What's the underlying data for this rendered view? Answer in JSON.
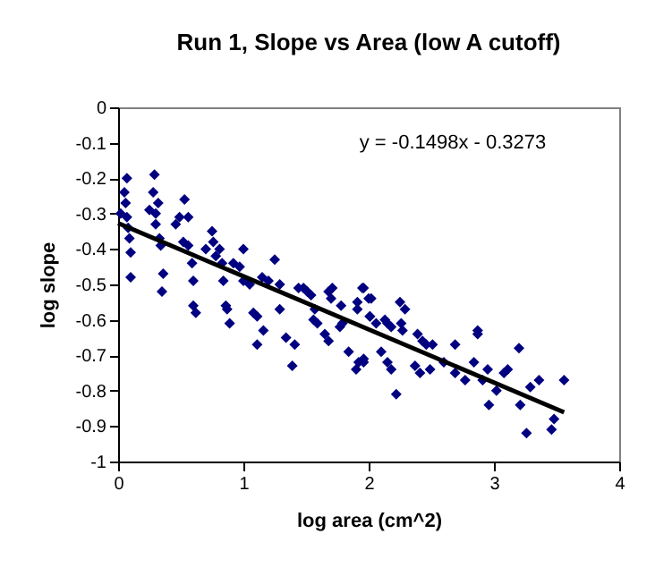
{
  "chart_data": {
    "type": "scatter",
    "title": "Run 1, Slope vs Area (low A cutoff)",
    "xlabel": "log area (cm^2)",
    "ylabel": "log slope",
    "xlim": [
      0,
      4
    ],
    "xticks": [
      0,
      1,
      2,
      3,
      4
    ],
    "ylim": [
      -1,
      0
    ],
    "yticks": [
      -1,
      -0.9,
      -0.8,
      -0.7,
      -0.6,
      -0.5,
      -0.4,
      -0.3,
      -0.2,
      -0.1,
      0
    ],
    "grid": false,
    "marker": "diamond",
    "annotations": [
      "y = -0.1498x - 0.3273"
    ],
    "series": [
      {
        "color": "#000080",
        "x": [
          0.02,
          0.05,
          0.07,
          0.06,
          0.07,
          0.08,
          0.09,
          0.1,
          0.1,
          0.25,
          0.29,
          0.28,
          0.3,
          0.32,
          0.3,
          0.33,
          0.34,
          0.36,
          0.35,
          0.46,
          0.49,
          0.53,
          0.56,
          0.52,
          0.56,
          0.59,
          0.6,
          0.6,
          0.62,
          0.7,
          0.75,
          0.76,
          0.78,
          0.81,
          0.83,
          0.84,
          0.86,
          0.87,
          0.89,
          0.92,
          0.97,
          1.0,
          1.0,
          1.05,
          1.08,
          1.11,
          1.11,
          1.16,
          1.15,
          1.2,
          1.25,
          1.29,
          1.29,
          1.34,
          1.39,
          1.41,
          1.44,
          1.48,
          1.51,
          1.54,
          1.57,
          1.56,
          1.59,
          1.65,
          1.68,
          1.68,
          1.71,
          1.7,
          1.77,
          1.78,
          1.79,
          1.84,
          1.9,
          1.92,
          1.96,
          1.91,
          1.95,
          2.0,
          2.01,
          1.96,
          2.02,
          1.91,
          2.01,
          2.06,
          2.13,
          2.18,
          2.15,
          2.25,
          2.29,
          2.26,
          2.27,
          1.96,
          2.1,
          2.15,
          2.18,
          2.22,
          2.39,
          2.43,
          2.46,
          2.51,
          2.37,
          2.41,
          2.49,
          2.6,
          2.69,
          2.69,
          2.77,
          2.84,
          2.87,
          2.87,
          2.91,
          2.95,
          3.02,
          2.96,
          3.08,
          3.11,
          3.2,
          3.21,
          3.29,
          3.36,
          3.26,
          3.46,
          3.48,
          3.56
        ],
        "values": [
          -0.3,
          -0.24,
          -0.2,
          -0.27,
          -0.31,
          -0.34,
          -0.37,
          -0.41,
          -0.48,
          -0.29,
          -0.19,
          -0.24,
          -0.3,
          -0.27,
          -0.33,
          -0.37,
          -0.39,
          -0.47,
          -0.52,
          -0.33,
          -0.31,
          -0.26,
          -0.31,
          -0.38,
          -0.39,
          -0.44,
          -0.49,
          -0.56,
          -0.58,
          -0.4,
          -0.35,
          -0.38,
          -0.42,
          -0.4,
          -0.44,
          -0.49,
          -0.56,
          -0.57,
          -0.61,
          -0.44,
          -0.45,
          -0.4,
          -0.49,
          -0.5,
          -0.58,
          -0.59,
          -0.67,
          -0.63,
          -0.48,
          -0.49,
          -0.43,
          -0.5,
          -0.57,
          -0.65,
          -0.73,
          -0.67,
          -0.51,
          -0.51,
          -0.52,
          -0.53,
          -0.57,
          -0.6,
          -0.61,
          -0.64,
          -0.66,
          -0.52,
          -0.51,
          -0.54,
          -0.62,
          -0.56,
          -0.61,
          -0.69,
          -0.74,
          -0.72,
          -0.71,
          -0.55,
          -0.51,
          -0.54,
          -0.59,
          -0.51,
          -0.54,
          -0.57,
          -0.59,
          -0.61,
          -0.6,
          -0.62,
          -0.61,
          -0.55,
          -0.57,
          -0.61,
          -0.63,
          -0.72,
          -0.69,
          -0.72,
          -0.74,
          -0.81,
          -0.64,
          -0.66,
          -0.67,
          -0.67,
          -0.73,
          -0.75,
          -0.74,
          -0.72,
          -0.67,
          -0.75,
          -0.77,
          -0.72,
          -0.63,
          -0.64,
          -0.77,
          -0.74,
          -0.8,
          -0.84,
          -0.75,
          -0.74,
          -0.68,
          -0.84,
          -0.79,
          -0.77,
          -0.92,
          -0.91,
          -0.88,
          -0.77
        ]
      },
      {
        "type": "line",
        "marker": "none",
        "color": "#000000",
        "x": [
          0,
          3.56
        ],
        "values": [
          -0.327,
          -0.861
        ]
      }
    ]
  }
}
